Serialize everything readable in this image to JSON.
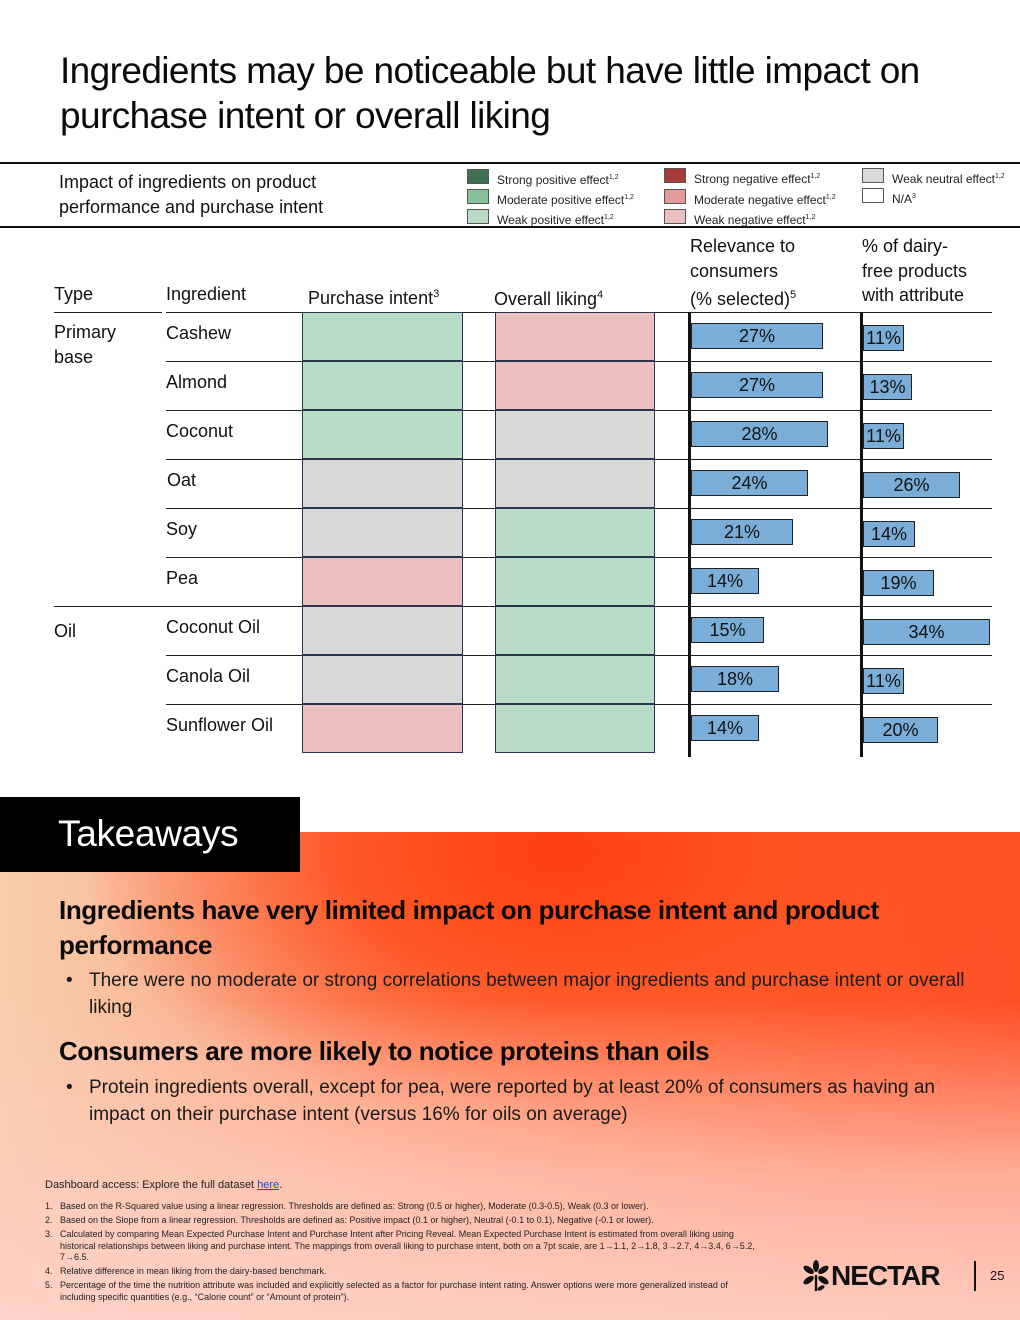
{
  "title": "Ingredients may be noticeable but have little impact on purchase intent or overall liking",
  "legend": {
    "title": "Impact of ingredients on product performance and purchase intent",
    "items": [
      {
        "key": "strong_pos",
        "label": "Strong positive effect",
        "sup": "1,2",
        "color": "#3d7150"
      },
      {
        "key": "mod_pos",
        "label": "Moderate positive effect",
        "sup": "1,2",
        "color": "#86c199"
      },
      {
        "key": "weak_pos",
        "label": "Weak positive effect",
        "sup": "1,2",
        "color": "#b9dcc7"
      },
      {
        "key": "strong_neg",
        "label": "Strong negative effect",
        "sup": "1,2",
        "color": "#a83a3a"
      },
      {
        "key": "mod_neg",
        "label": "Moderate negative effect",
        "sup": "1,2",
        "color": "#e39a9a"
      },
      {
        "key": "weak_neg",
        "label": "Weak negative effect",
        "sup": "1,2",
        "color": "#ecc0bf"
      },
      {
        "key": "weak_neutral",
        "label": "Weak neutral effect",
        "sup": "1,2",
        "color": "#d9d9d9"
      },
      {
        "key": "na",
        "label": "N/A",
        "sup": "3",
        "color": "#ffffff"
      }
    ]
  },
  "table": {
    "headers": {
      "type": "Type",
      "ingredient": "Ingredient",
      "purchase_intent": "Purchase intent",
      "purchase_intent_sup": "3",
      "overall_liking": "Overall liking",
      "overall_liking_sup": "4",
      "relevance_1": "Relevance to",
      "relevance_2": "consumers",
      "relevance_3": "(% selected)",
      "relevance_sup": "5",
      "dairy_free_1": "% of dairy-",
      "dairy_free_2": "free products",
      "dairy_free_3": "with attribute"
    },
    "types": [
      {
        "label_line1": "Primary",
        "label_line2": "base"
      },
      {
        "label_line1": "Oil",
        "label_line2": ""
      }
    ],
    "rows": [
      {
        "ingredient": "Cashew",
        "purchase_intent": "weak_pos",
        "overall_liking": "weak_neg",
        "relevance": 27,
        "relevance_label": "27%",
        "dairy_free": 11,
        "dairy_free_label": "11%"
      },
      {
        "ingredient": "Almond",
        "purchase_intent": "weak_pos",
        "overall_liking": "weak_neg",
        "relevance": 27,
        "relevance_label": "27%",
        "dairy_free": 13,
        "dairy_free_label": "13%"
      },
      {
        "ingredient": "Coconut",
        "purchase_intent": "weak_pos",
        "overall_liking": "weak_neutral",
        "relevance": 28,
        "relevance_label": "28%",
        "dairy_free": 11,
        "dairy_free_label": "11%"
      },
      {
        "ingredient": "Oat",
        "purchase_intent": "weak_neutral",
        "overall_liking": "weak_neutral",
        "relevance": 24,
        "relevance_label": "24%",
        "dairy_free": 26,
        "dairy_free_label": "26%"
      },
      {
        "ingredient": "Soy",
        "purchase_intent": "weak_neutral",
        "overall_liking": "weak_pos",
        "relevance": 21,
        "relevance_label": "21%",
        "dairy_free": 14,
        "dairy_free_label": "14%"
      },
      {
        "ingredient": "Pea",
        "purchase_intent": "weak_neg",
        "overall_liking": "weak_pos",
        "relevance": 14,
        "relevance_label": "14%",
        "dairy_free": 19,
        "dairy_free_label": "19%"
      },
      {
        "ingredient": "Coconut Oil",
        "purchase_intent": "weak_neutral",
        "overall_liking": "weak_pos",
        "relevance": 15,
        "relevance_label": "15%",
        "dairy_free": 34,
        "dairy_free_label": "34%"
      },
      {
        "ingredient": "Canola Oil",
        "purchase_intent": "weak_neutral",
        "overall_liking": "weak_pos",
        "relevance": 18,
        "relevance_label": "18%",
        "dairy_free": 11,
        "dairy_free_label": "11%"
      },
      {
        "ingredient": "Sunflower Oil",
        "purchase_intent": "weak_neg",
        "overall_liking": "weak_pos",
        "relevance": 14,
        "relevance_label": "14%",
        "dairy_free": 20,
        "dairy_free_label": "20%"
      }
    ]
  },
  "takeaways": {
    "tab_label": "Takeaways",
    "heading1": "Ingredients have very limited impact on purchase intent and product performance",
    "bullet1": "There were no moderate or strong correlations between major ingredients and purchase intent or overall liking",
    "heading2": "Consumers are more likely to notice proteins than oils",
    "bullet2": "Protein ingredients overall, except for pea, were reported by at least 20% of consumers as having an impact on their purchase intent (versus 16% for oils on average)",
    "bullet_glyph": "•"
  },
  "footer": {
    "dashboard_text": "Dashboard access: Explore the full dataset ",
    "dashboard_link": "here",
    "dashboard_end": ".",
    "footnotes": [
      {
        "num": "1.",
        "text": "Based on the R-Squared value using a linear regression. Thresholds are defined as: Strong (0.5 or higher), Moderate (0.3-0.5), Weak (0.3 or lower)."
      },
      {
        "num": "2.",
        "text": "Based on the Slope from a linear regression. Thresholds are defined as: Positive impact (0.1 or higher), Neutral (-0.1 to 0.1), Negative (-0.1 or lower)."
      },
      {
        "num": "3.",
        "text": "Calculated by comparing Mean Expected Purchase Intent and Purchase Intent after Pricing Reveal. Mean Expected Purchase Intent is estimated from overall liking using historical relationships between liking and purchase intent. The mappings from overall liking to purchase intent, both on a 7pt scale, are 1→1.1, 2→1.8, 3→2.7, 4→3.4, 6→5.2, 7→6.5."
      },
      {
        "num": "4.",
        "text": "Relative difference in mean liking from the dairy-based benchmark."
      },
      {
        "num": "5.",
        "text": "Percentage of the time the nutrition attribute was included and explicitly selected as a factor for purchase intent rating. Answer options were more generalized instead of including specific quantities (e.g., “Calorie count” or “Amount of protein”)."
      }
    ],
    "brand": "NECTAR",
    "page_number": "25",
    "brand_icon": "nectar-flower-logo"
  }
}
